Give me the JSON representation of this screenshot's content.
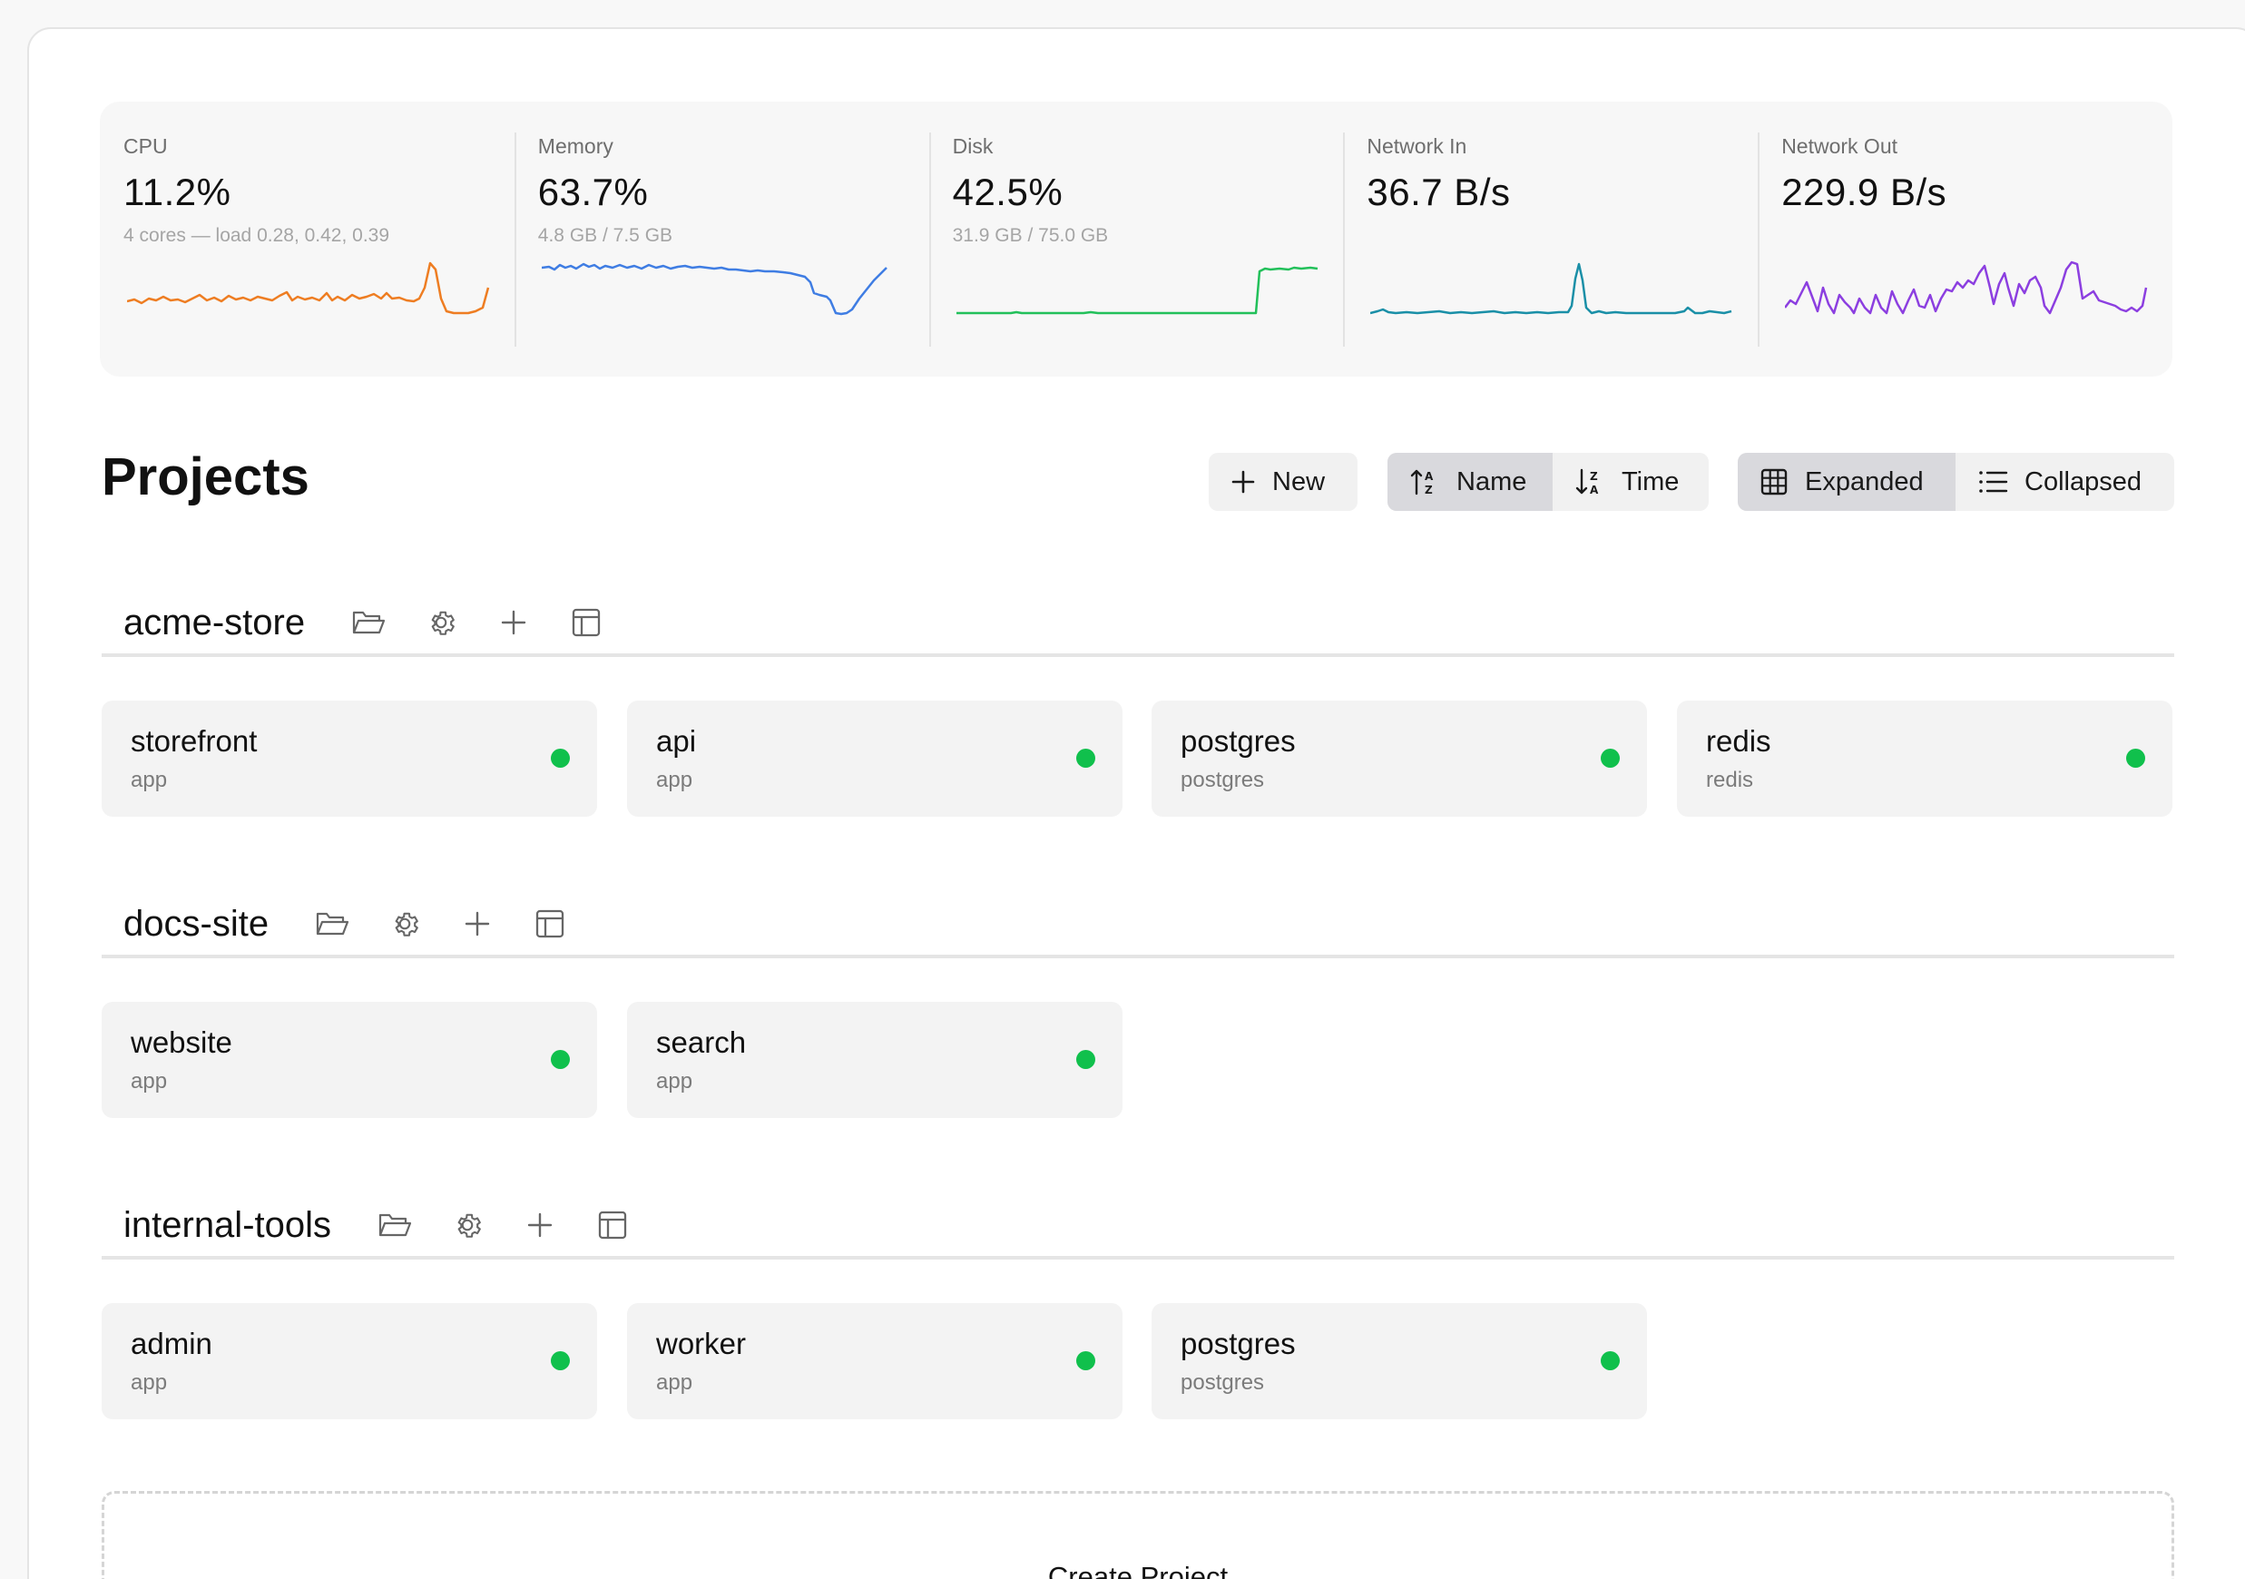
{
  "metrics": [
    {
      "label": "CPU",
      "value": "11.2%",
      "sub": "4 cores — load 0.28, 0.42, 0.39",
      "color": "#ee7d22"
    },
    {
      "label": "Memory",
      "value": "63.7%",
      "sub": "4.8 GB / 7.5 GB",
      "color": "#3f7de3"
    },
    {
      "label": "Disk",
      "value": "42.5%",
      "sub": "31.9 GB / 75.0 GB",
      "color": "#22c05a"
    },
    {
      "label": "Network In",
      "value": "36.7 B/s",
      "sub": "",
      "color": "#1a8fa7"
    },
    {
      "label": "Network Out",
      "value": "229.9 B/s",
      "sub": "",
      "color": "#8c3fe0"
    }
  ],
  "header": {
    "title": "Projects",
    "new_label": "New",
    "sort_name_label": "Name",
    "sort_time_label": "Time",
    "view_expanded_label": "Expanded",
    "view_collapsed_label": "Collapsed",
    "active_sort": "Name",
    "active_view": "Expanded"
  },
  "groups": [
    {
      "name": "acme-store",
      "services": [
        {
          "name": "storefront",
          "type": "app",
          "status": "running"
        },
        {
          "name": "api",
          "type": "app",
          "status": "running"
        },
        {
          "name": "postgres",
          "type": "postgres",
          "status": "running"
        },
        {
          "name": "redis",
          "type": "redis",
          "status": "running"
        }
      ]
    },
    {
      "name": "docs-site",
      "services": [
        {
          "name": "website",
          "type": "app",
          "status": "running"
        },
        {
          "name": "search",
          "type": "app",
          "status": "running"
        }
      ]
    },
    {
      "name": "internal-tools",
      "services": [
        {
          "name": "admin",
          "type": "app",
          "status": "running"
        },
        {
          "name": "worker",
          "type": "app",
          "status": "running"
        },
        {
          "name": "postgres",
          "type": "postgres",
          "status": "running"
        }
      ]
    }
  ],
  "create_label": "Create Project",
  "status_color": "#10c04c"
}
